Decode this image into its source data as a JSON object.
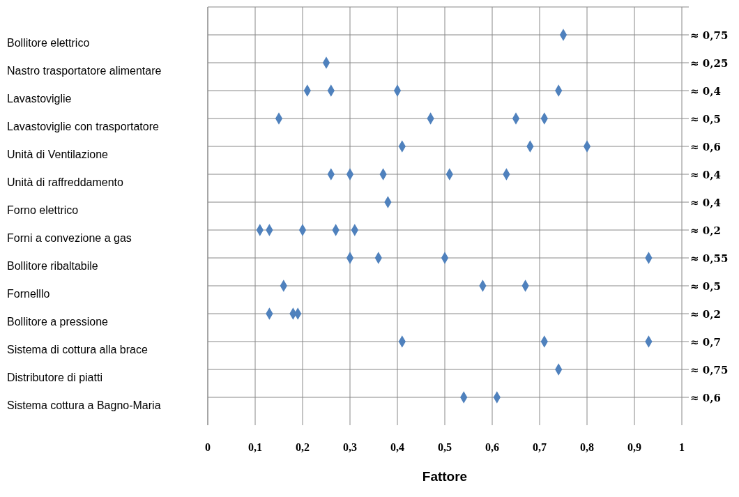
{
  "chart_data": {
    "type": "scatter",
    "orientation": "horizontal",
    "xlabel": "Fattore",
    "categories": [
      "Bollitore elettrico",
      "Nastro trasportatore alimentare",
      "Lavastoviglie",
      "Lavastoviglie con trasportatore",
      "Unità di Ventilazione",
      "Unità di raffreddamento",
      "Forno elettrico",
      "Forni a convezione a gas",
      "Bollitore ribaltabile",
      "Fornelllo",
      "Bollitore a pressione",
      "Sistema di cottura alla brace",
      "Distributore di piatti",
      "Sistema cottura a Bagno-Maria"
    ],
    "y2_categories": [
      "≈ 0,75",
      "≈ 0,25",
      "≈ 0,4",
      "≈ 0,5",
      "≈ 0,6",
      "≈ 0,4",
      "≈ 0,4",
      "≈ 0,2",
      "≈ 0,55",
      "≈ 0,5",
      "≈ 0,2",
      "≈ 0,7",
      "≈ 0,75",
      "≈ 0,6"
    ],
    "series": [
      {
        "color": "#4f81bd",
        "values": [
          0.75,
          0.25,
          0.21,
          0.15,
          0.41,
          0.26,
          0.38,
          0.11,
          0.3,
          0.16,
          0.13,
          0.41,
          0.74,
          0.54
        ]
      },
      {
        "color": "#4f81bd",
        "values": [
          null,
          null,
          0.26,
          0.47,
          0.68,
          0.3,
          null,
          0.13,
          0.36,
          0.58,
          0.18,
          0.71,
          null,
          0.61
        ]
      },
      {
        "color": "#4f81bd",
        "values": [
          null,
          null,
          0.4,
          0.65,
          0.8,
          0.37,
          null,
          0.2,
          0.5,
          0.67,
          0.19,
          0.93,
          null,
          null
        ]
      },
      {
        "color": "#4f81bd",
        "values": [
          null,
          null,
          0.74,
          0.71,
          null,
          0.51,
          null,
          0.27,
          0.93,
          null,
          null,
          null,
          null,
          null
        ]
      },
      {
        "color": "#4f81bd",
        "values": [
          null,
          null,
          null,
          null,
          null,
          0.63,
          null,
          0.31,
          null,
          null,
          null,
          null,
          null,
          null
        ]
      }
    ],
    "xlim": [
      0,
      1
    ],
    "xticks": [
      0,
      {
        "value": 0.1,
        "label": "0,1"
      },
      {
        "value": 0.2,
        "label": "0,2"
      },
      {
        "value": 0.3,
        "label": "0,3"
      },
      {
        "value": 0.4,
        "label": "0,4"
      },
      {
        "value": 0.5,
        "label": "0,5"
      },
      {
        "value": 0.6,
        "label": "0,6"
      },
      {
        "value": 0.7,
        "label": "0,7"
      },
      {
        "value": 0.8,
        "label": "0,8"
      },
      {
        "value": 0.9,
        "label": "0,9"
      },
      1
    ],
    "grid": true,
    "marker": "diamond"
  }
}
